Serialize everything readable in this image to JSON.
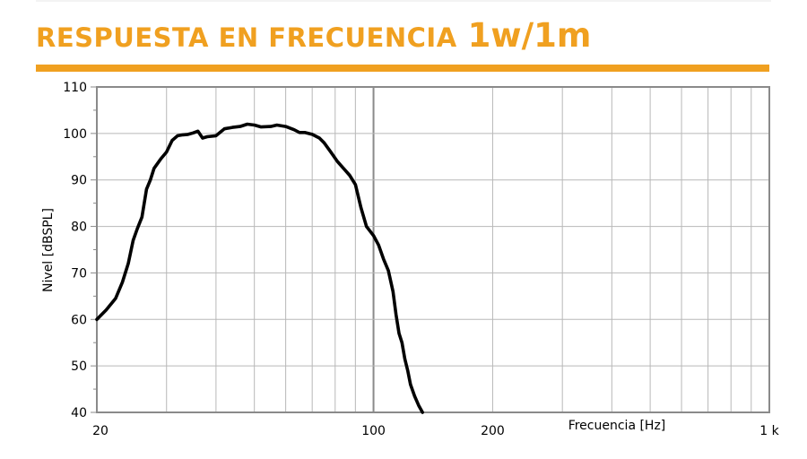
{
  "header": {
    "title": "RESPUESTA EN FRECUENCIA",
    "title_suffix": "1w/1m"
  },
  "colors": {
    "accent": "#f0a020",
    "curve": "#000000",
    "grid": "#b8b8b8",
    "axis": "#8a8a8a"
  },
  "chart_data": {
    "type": "line",
    "x_scale": "log",
    "xlabel": "Frecuencia [Hz]",
    "ylabel": "Nivel [dBSPL]",
    "xlim": [
      20,
      1000
    ],
    "ylim": [
      40,
      110
    ],
    "grid": true,
    "x_ticks": [
      {
        "value": 20,
        "label": "20"
      },
      {
        "value": 100,
        "label": "100"
      },
      {
        "value": 200,
        "label": "200"
      },
      {
        "value": 1000,
        "label": "1 k"
      }
    ],
    "y_ticks": [
      {
        "value": 40,
        "label": "40"
      },
      {
        "value": 50,
        "label": "50"
      },
      {
        "value": 60,
        "label": "60"
      },
      {
        "value": 70,
        "label": "70"
      },
      {
        "value": 80,
        "label": "80"
      },
      {
        "value": 90,
        "label": "90"
      },
      {
        "value": 100,
        "label": "100"
      },
      {
        "value": 110,
        "label": "110"
      }
    ],
    "series": [
      {
        "x": [
          20,
          21.1,
          22.3,
          23.2,
          24,
          24.7,
          25.3,
          26,
          26.7,
          27.3,
          27.9,
          29,
          30,
          31,
          32,
          33,
          34,
          35,
          36,
          37,
          38,
          40,
          42,
          44,
          46,
          48,
          50,
          52,
          55,
          57,
          60,
          63,
          65,
          67,
          70,
          73,
          75,
          78,
          81,
          84,
          87,
          90,
          93,
          96,
          98,
          100,
          103,
          106,
          109,
          112,
          114,
          116,
          118,
          120,
          122,
          124,
          127,
          130,
          133
        ],
        "y": [
          60,
          62,
          64.5,
          68,
          72,
          77,
          79.5,
          82,
          88,
          90,
          92.5,
          94.5,
          96,
          98.5,
          99.5,
          99.7,
          99.8,
          100.1,
          100.5,
          99,
          99.3,
          99.5,
          101,
          101.3,
          101.5,
          102,
          101.8,
          101.4,
          101.5,
          101.8,
          101.5,
          100.8,
          100.2,
          100.2,
          99.8,
          99,
          98,
          96,
          94,
          92.5,
          91,
          89,
          84,
          80,
          79,
          78,
          76,
          73,
          70.5,
          66,
          61,
          57,
          55,
          51.5,
          49,
          46,
          43.5,
          41.5,
          40
        ]
      }
    ]
  }
}
